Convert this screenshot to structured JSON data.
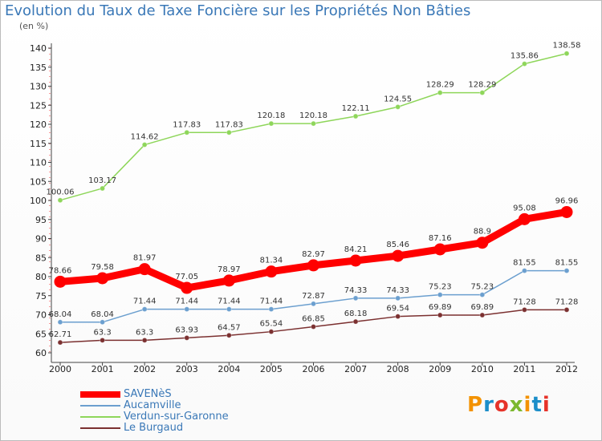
{
  "title": "Evolution du Taux de Taxe Foncière sur les Propriétés Non Bâties",
  "unit": "(en %)",
  "logo": {
    "text": "Proxiti",
    "letters": [
      "P",
      "r",
      "o",
      "x",
      "i",
      "t",
      "i"
    ],
    "colors": [
      "#f39200",
      "#1c8ec9",
      "#e6332a",
      "#7cb82f",
      "#f39200",
      "#1c8ec9",
      "#e6332a"
    ]
  },
  "chart_data": {
    "type": "line",
    "x": [
      "2000",
      "2001",
      "2002",
      "2003",
      "2004",
      "2005",
      "2006",
      "2007",
      "2008",
      "2009",
      "2010",
      "2011",
      "2012"
    ],
    "ylim": [
      60,
      140
    ],
    "yticks": [
      60,
      65,
      70,
      75,
      80,
      85,
      90,
      95,
      100,
      105,
      110,
      115,
      120,
      125,
      130,
      135,
      140
    ],
    "grid": false,
    "legend_position": "bottom-left",
    "series": [
      {
        "name": "SAVENèS",
        "color": "#ff0000",
        "values": [
          78.66,
          79.58,
          81.97,
          77.05,
          78.97,
          81.34,
          82.97,
          84.21,
          85.46,
          87.16,
          88.9,
          95.08,
          96.96
        ],
        "labels": [
          "78.66",
          "79.58",
          "81.97",
          "77.05",
          "78.97",
          "81.34",
          "82.97",
          "84.21",
          "85.46",
          "87.16",
          "88.9",
          "95.08",
          "96.96"
        ]
      },
      {
        "name": "Aucamville",
        "color": "#6b9fcf",
        "values": [
          68.04,
          68.04,
          71.44,
          71.44,
          71.44,
          71.44,
          72.87,
          74.33,
          74.33,
          75.23,
          75.23,
          81.55,
          81.55
        ],
        "labels": [
          "68.04",
          "68.04",
          "71.44",
          "71.44",
          "71.44",
          "71.44",
          "72.87",
          "74.33",
          "74.33",
          "75.23",
          "75.23",
          "81.55",
          "81.55"
        ]
      },
      {
        "name": "Verdun-sur-Garonne",
        "color": "#8ed65a",
        "values": [
          100.06,
          103.17,
          114.62,
          117.83,
          117.83,
          120.18,
          120.18,
          122.11,
          124.55,
          128.29,
          128.29,
          135.86,
          138.58
        ],
        "labels": [
          "100.06",
          "103.17",
          "114.62",
          "117.83",
          "117.83",
          "120.18",
          "120.18",
          "122.11",
          "124.55",
          "128.29",
          "128.29",
          "135.86",
          "138.58"
        ]
      },
      {
        "name": "Le Burgaud",
        "color": "#7b3030",
        "values": [
          62.71,
          63.3,
          63.3,
          63.93,
          64.57,
          65.54,
          66.85,
          68.18,
          69.54,
          69.89,
          69.89,
          71.28,
          71.28
        ],
        "labels": [
          "62.71",
          "63.3",
          "63.3",
          "63.93",
          "64.57",
          "65.54",
          "66.85",
          "68.18",
          "69.54",
          "69.89",
          "69.89",
          "71.28",
          "71.28"
        ]
      }
    ]
  }
}
